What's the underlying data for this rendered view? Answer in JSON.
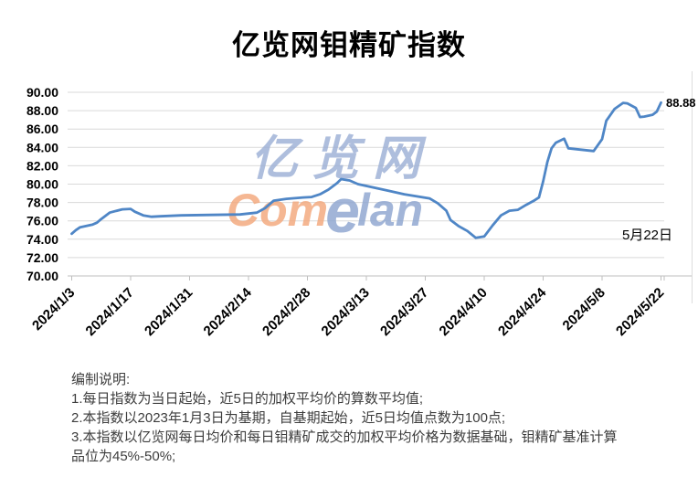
{
  "title": "亿览网钼精矿指数",
  "colors": {
    "line": "#4f86c6",
    "grid": "#d9d9d9",
    "axis": "#bfbfbf",
    "tick": "#bfbfbf",
    "axis_label": "#000000",
    "watermark_blue": "#9db0d6",
    "watermark_orange": "#f3a87c",
    "note_text": "#3d3d3d"
  },
  "y_axis": {
    "min": 70,
    "max": 90,
    "step": 2,
    "tick_labels": [
      "90.00",
      "88.00",
      "86.00",
      "84.00",
      "82.00",
      "80.00",
      "78.00",
      "76.00",
      "74.00",
      "72.00",
      "70.00"
    ]
  },
  "x_axis": {
    "tick_labels": [
      "2024/1/3",
      "2024/1/17",
      "2024/1/31",
      "2024/2/14",
      "2024/2/28",
      "2024/3/13",
      "2024/3/27",
      "2024/4/10",
      "2024/4/24",
      "2024/5/8",
      "2024/5/22"
    ]
  },
  "annotation": {
    "last_value_label": "88.88",
    "date_label": "5月22日"
  },
  "watermark": {
    "line1": "亿览网",
    "com": "Com",
    "e": "e",
    "lan": "lan"
  },
  "notes": {
    "heading": "编制说明:",
    "lines": [
      "1.每日指数为当日起始，近5日的加权平均价的算数平均值;",
      "2.本指数以2023年1月3日为基期，自基期起始，近5日均值点数为100点;",
      "3.本指数以亿览网每日均价和每日钼精矿成交的加权平均价格为数据基础，钼精矿基准计算",
      "品位为45%-50%;"
    ]
  },
  "chart_data": {
    "type": "line",
    "title": "亿览网钼精矿指数",
    "series_name": "钼精矿指数",
    "xlabel": "",
    "ylabel": "",
    "ylim": [
      70,
      90
    ],
    "grid": "horizontal",
    "legend": "none",
    "x_tick_labels": [
      "2024/1/3",
      "2024/1/17",
      "2024/1/31",
      "2024/2/14",
      "2024/2/28",
      "2024/3/13",
      "2024/3/27",
      "2024/4/10",
      "2024/4/24",
      "2024/5/8",
      "2024/5/22"
    ],
    "points": [
      [
        "2024/1/3",
        74.6
      ],
      [
        "2024/1/4",
        75.0
      ],
      [
        "2024/1/5",
        75.3
      ],
      [
        "2024/1/8",
        75.6
      ],
      [
        "2024/1/9",
        75.8
      ],
      [
        "2024/1/10",
        76.2
      ],
      [
        "2024/1/12",
        76.9
      ],
      [
        "2024/1/15",
        77.25
      ],
      [
        "2024/1/17",
        77.3
      ],
      [
        "2024/1/18",
        77.0
      ],
      [
        "2024/1/20",
        76.6
      ],
      [
        "2024/1/22",
        76.45
      ],
      [
        "2024/1/24",
        76.5
      ],
      [
        "2024/1/29",
        76.6
      ],
      [
        "2024/2/5",
        76.65
      ],
      [
        "2024/2/12",
        76.7
      ],
      [
        "2024/2/16",
        76.9
      ],
      [
        "2024/2/18",
        77.4
      ],
      [
        "2024/2/20",
        78.2
      ],
      [
        "2024/2/23",
        78.4
      ],
      [
        "2024/2/27",
        78.55
      ],
      [
        "2024/2/29",
        78.6
      ],
      [
        "2024/3/2",
        78.9
      ],
      [
        "2024/3/4",
        79.4
      ],
      [
        "2024/3/6",
        80.1
      ],
      [
        "2024/3/7",
        80.55
      ],
      [
        "2024/3/9",
        80.4
      ],
      [
        "2024/3/11",
        80.0
      ],
      [
        "2024/3/15",
        79.6
      ],
      [
        "2024/3/18",
        79.3
      ],
      [
        "2024/3/22",
        78.9
      ],
      [
        "2024/3/26",
        78.6
      ],
      [
        "2024/3/28",
        78.45
      ],
      [
        "2024/3/30",
        77.9
      ],
      [
        "2024/4/1",
        77.1
      ],
      [
        "2024/4/2",
        76.1
      ],
      [
        "2024/4/4",
        75.4
      ],
      [
        "2024/4/6",
        74.9
      ],
      [
        "2024/4/8",
        74.15
      ],
      [
        "2024/4/10",
        74.3
      ],
      [
        "2024/4/12",
        75.5
      ],
      [
        "2024/4/14",
        76.6
      ],
      [
        "2024/4/16",
        77.1
      ],
      [
        "2024/4/18",
        77.2
      ],
      [
        "2024/4/20",
        77.75
      ],
      [
        "2024/4/22",
        78.25
      ],
      [
        "2024/4/23",
        78.55
      ],
      [
        "2024/4/24",
        80.3
      ],
      [
        "2024/4/25",
        82.4
      ],
      [
        "2024/4/26",
        83.9
      ],
      [
        "2024/4/27",
        84.5
      ],
      [
        "2024/4/29",
        84.95
      ],
      [
        "2024/4/30",
        83.9
      ],
      [
        "2024/5/3",
        83.75
      ],
      [
        "2024/5/6",
        83.6
      ],
      [
        "2024/5/8",
        84.9
      ],
      [
        "2024/5/9",
        86.9
      ],
      [
        "2024/5/11",
        88.2
      ],
      [
        "2024/5/13",
        88.85
      ],
      [
        "2024/5/14",
        88.8
      ],
      [
        "2024/5/16",
        88.3
      ],
      [
        "2024/5/17",
        87.3
      ],
      [
        "2024/5/18",
        87.35
      ],
      [
        "2024/5/20",
        87.55
      ],
      [
        "2024/5/21",
        87.9
      ],
      [
        "2024/5/22",
        88.88
      ]
    ],
    "last_point_label": "88.88",
    "annotation_text": "5月22日"
  }
}
